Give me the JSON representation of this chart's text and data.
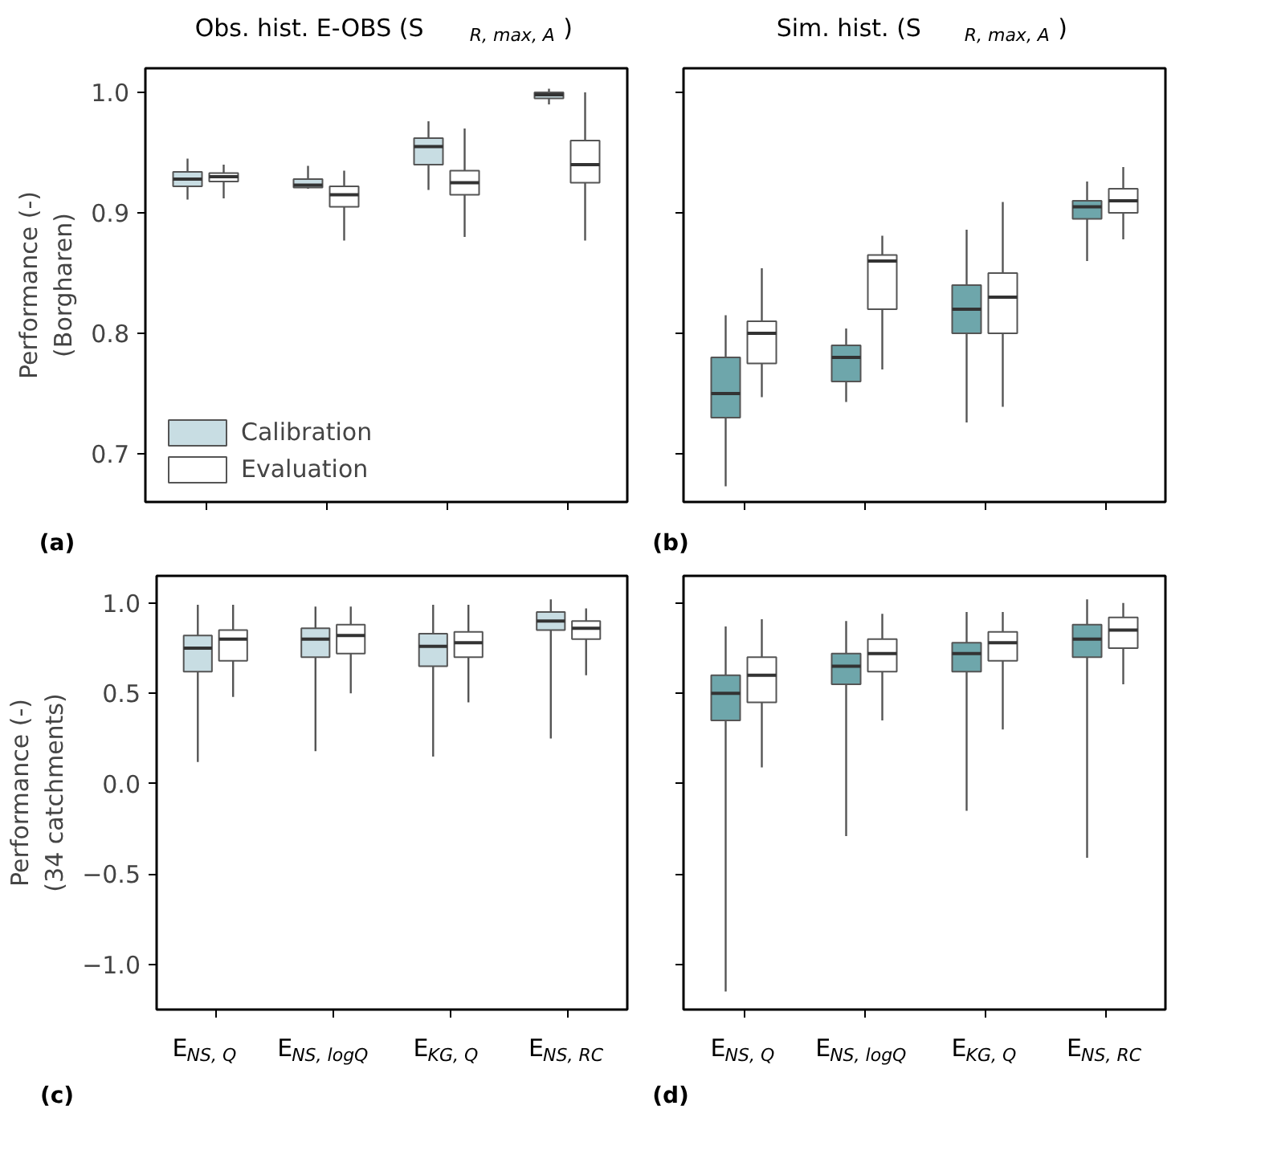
{
  "chart_data": [
    {
      "type": "box",
      "title": "Obs. hist. E-OBS (S$_{R, max, A}$)",
      "ylabel": "Performance (-)\n(Borgharen)",
      "categories": [
        "E$_{NS, Q}$",
        "E$_{NS, logQ}$",
        "E$_{KG, Q}$",
        "E$_{NS, RC}$"
      ],
      "ylim": [
        0.66,
        1.02
      ],
      "yticks": [
        {
          "value": 0.7,
          "label": "0.7"
        },
        {
          "value": 0.8,
          "label": "0.8"
        },
        {
          "value": 0.9,
          "label": "0.9"
        },
        {
          "value": 1.0,
          "label": "1.0"
        }
      ],
      "tick_labels": "y",
      "legend": "bottom left",
      "annotations": [
        "(a)"
      ],
      "series": [
        {
          "name": "Calibration",
          "color": "#c8dde3",
          "boxes": [
            {
              "low": 0.911,
              "q1": 0.922,
              "median": 0.928,
              "q3": 0.934,
              "high": 0.945
            },
            {
              "low": 0.92,
              "q1": 0.921,
              "median": 0.923,
              "q3": 0.928,
              "high": 0.939
            },
            {
              "low": 0.919,
              "q1": 0.94,
              "median": 0.955,
              "q3": 0.962,
              "high": 0.976
            },
            {
              "low": 0.99,
              "q1": 0.995,
              "median": 0.998,
              "q3": 1.0,
              "high": 1.003
            }
          ]
        },
        {
          "name": "Evaluation",
          "color": "#ffffff",
          "boxes": [
            {
              "low": 0.912,
              "q1": 0.926,
              "median": 0.93,
              "q3": 0.933,
              "high": 0.94
            },
            {
              "low": 0.877,
              "q1": 0.905,
              "median": 0.915,
              "q3": 0.922,
              "high": 0.935
            },
            {
              "low": 0.88,
              "q1": 0.915,
              "median": 0.925,
              "q3": 0.935,
              "high": 0.97
            },
            {
              "low": 0.877,
              "q1": 0.925,
              "median": 0.94,
              "q3": 0.96,
              "high": 1.0
            }
          ]
        }
      ]
    },
    {
      "type": "box",
      "title": "Sim. hist. (S$_{R, max, A}$)",
      "categories": [
        "E$_{NS, Q}$",
        "E$_{NS, logQ}$",
        "E$_{KG, Q}$",
        "E$_{NS, RC}$"
      ],
      "ylim": [
        0.66,
        1.02
      ],
      "yticks": [
        {
          "value": 0.7,
          "label": null
        },
        {
          "value": 0.8,
          "label": null
        },
        {
          "value": 0.9,
          "label": null
        },
        {
          "value": 1.0,
          "label": null
        }
      ],
      "tick_labels": false,
      "annotations": [
        "(b)"
      ],
      "series": [
        {
          "color": "#6ea6ab",
          "boxes": [
            {
              "low": 0.673,
              "q1": 0.73,
              "median": 0.75,
              "q3": 0.78,
              "high": 0.815
            },
            {
              "low": 0.743,
              "q1": 0.76,
              "median": 0.78,
              "q3": 0.79,
              "high": 0.804
            },
            {
              "low": 0.726,
              "q1": 0.8,
              "median": 0.82,
              "q3": 0.84,
              "high": 0.886
            },
            {
              "low": 0.86,
              "q1": 0.895,
              "median": 0.905,
              "q3": 0.91,
              "high": 0.926
            }
          ]
        },
        {
          "color": "#ffffff",
          "boxes": [
            {
              "low": 0.747,
              "q1": 0.775,
              "median": 0.8,
              "q3": 0.81,
              "high": 0.854
            },
            {
              "low": 0.77,
              "q1": 0.82,
              "median": 0.86,
              "q3": 0.865,
              "high": 0.881
            },
            {
              "low": 0.739,
              "q1": 0.8,
              "median": 0.83,
              "q3": 0.85,
              "high": 0.909
            },
            {
              "low": 0.878,
              "q1": 0.9,
              "median": 0.91,
              "q3": 0.92,
              "high": 0.938
            }
          ]
        }
      ]
    },
    {
      "type": "box",
      "ylabel": "Performance (-)\n(34 catchments)",
      "categories": [
        "E$_{NS, Q}$",
        "E$_{NS, logQ}$",
        "E$_{KG, Q}$",
        "E$_{NS, RC}$"
      ],
      "ylim": [
        -1.25,
        1.15
      ],
      "yticks": [
        {
          "value": -1.0,
          "label": "−1.0"
        },
        {
          "value": -0.5,
          "label": "−0.5"
        },
        {
          "value": 0.0,
          "label": "0.0"
        },
        {
          "value": 0.5,
          "label": "0.5"
        },
        {
          "value": 1.0,
          "label": "1.0"
        }
      ],
      "annotations": [
        "(c)"
      ],
      "series": [
        {
          "color": "#c8dde3",
          "boxes": [
            {
              "low": 0.12,
              "q1": 0.62,
              "median": 0.75,
              "q3": 0.82,
              "high": 0.99
            },
            {
              "low": 0.18,
              "q1": 0.7,
              "median": 0.8,
              "q3": 0.86,
              "high": 0.98
            },
            {
              "low": 0.15,
              "q1": 0.65,
              "median": 0.76,
              "q3": 0.83,
              "high": 0.99
            },
            {
              "low": 0.25,
              "q1": 0.85,
              "median": 0.9,
              "q3": 0.95,
              "high": 1.02
            }
          ]
        },
        {
          "color": "#ffffff",
          "boxes": [
            {
              "low": 0.48,
              "q1": 0.68,
              "median": 0.8,
              "q3": 0.85,
              "high": 0.99
            },
            {
              "low": 0.5,
              "q1": 0.72,
              "median": 0.82,
              "q3": 0.88,
              "high": 0.98
            },
            {
              "low": 0.45,
              "q1": 0.7,
              "median": 0.78,
              "q3": 0.84,
              "high": 0.99
            },
            {
              "low": 0.6,
              "q1": 0.8,
              "median": 0.86,
              "q3": 0.9,
              "high": 0.97
            }
          ]
        }
      ]
    },
    {
      "type": "box",
      "categories": [
        "E$_{NS, Q}$",
        "E$_{NS, logQ}$",
        "E$_{KG, Q}$",
        "E$_{NS, RC}$"
      ],
      "ylim": [
        -1.25,
        1.15
      ],
      "yticks": [
        {
          "value": -1.0,
          "label": null
        },
        {
          "value": -0.5,
          "label": null
        },
        {
          "value": 0.0,
          "label": null
        },
        {
          "value": 0.5,
          "label": null
        },
        {
          "value": 1.0,
          "label": null
        }
      ],
      "tick_labels": "x",
      "annotations": [
        "(d)"
      ],
      "series": [
        {
          "color": "#6ea6ab",
          "boxes": [
            {
              "low": -1.15,
              "q1": 0.35,
              "median": 0.5,
              "q3": 0.6,
              "high": 0.87
            },
            {
              "low": -0.29,
              "q1": 0.55,
              "median": 0.65,
              "q3": 0.72,
              "high": 0.9
            },
            {
              "low": -0.15,
              "q1": 0.62,
              "median": 0.72,
              "q3": 0.78,
              "high": 0.95
            },
            {
              "low": -0.41,
              "q1": 0.7,
              "median": 0.8,
              "q3": 0.88,
              "high": 1.02
            }
          ]
        },
        {
          "color": "#ffffff",
          "boxes": [
            {
              "low": 0.09,
              "q1": 0.45,
              "median": 0.6,
              "q3": 0.7,
              "high": 0.91
            },
            {
              "low": 0.35,
              "q1": 0.62,
              "median": 0.72,
              "q3": 0.8,
              "high": 0.94
            },
            {
              "low": 0.3,
              "q1": 0.68,
              "median": 0.78,
              "q3": 0.84,
              "high": 0.95
            },
            {
              "low": 0.55,
              "q1": 0.75,
              "median": 0.85,
              "q3": 0.92,
              "high": 1.0
            }
          ]
        }
      ]
    }
  ]
}
